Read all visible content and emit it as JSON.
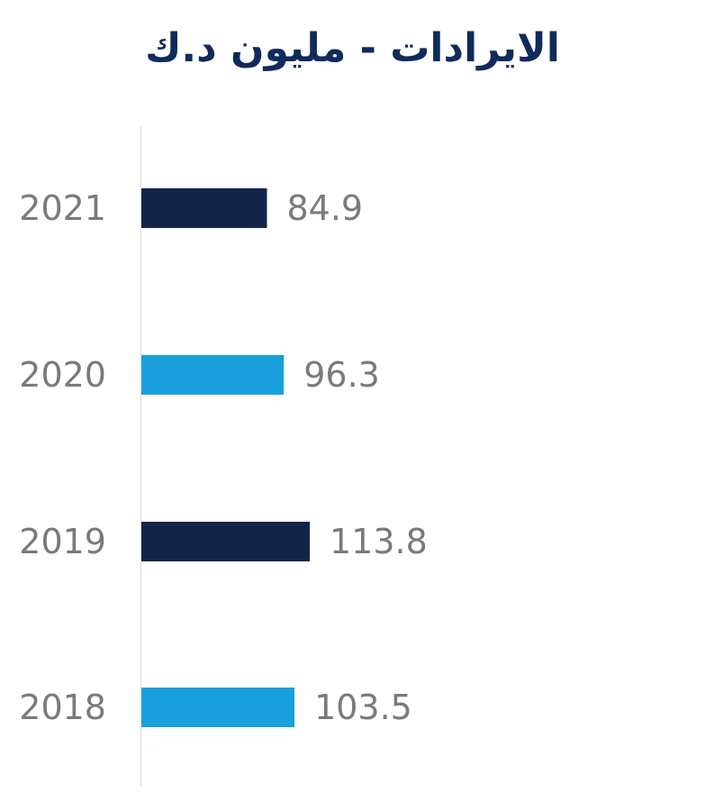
{
  "chart_data": {
    "type": "bar",
    "orientation": "horizontal",
    "title": "الايرادات - مليون د.ك",
    "categories": [
      "2021",
      "2020",
      "2019",
      "2018"
    ],
    "values": [
      84.9,
      96.3,
      113.8,
      103.5
    ],
    "value_labels": [
      "84.9",
      "96.3",
      "113.8",
      "103.5"
    ],
    "bar_colors": [
      "#13244a",
      "#19a0dc",
      "#13244a",
      "#19a0dc"
    ],
    "axis_color": "#e0e0e0",
    "grid": false,
    "legend": "none"
  }
}
